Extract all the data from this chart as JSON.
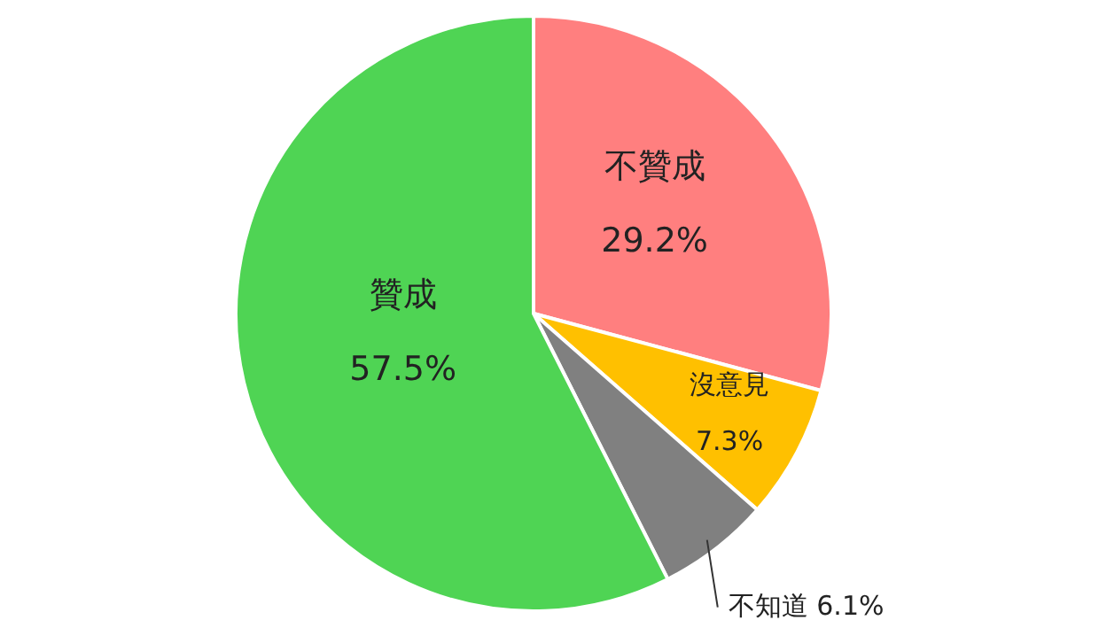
{
  "chart_data": {
    "type": "pie",
    "categories": [
      "不贊成",
      "沒意見",
      "不知道",
      "贊成"
    ],
    "values": [
      29.2,
      7.3,
      6.1,
      57.5
    ],
    "value_labels": [
      "29.2%",
      "7.3%",
      "6.1%",
      "57.5%"
    ],
    "colors": [
      "#ff7f7f",
      "#ffc000",
      "#808080",
      "#4fd454"
    ],
    "legend": false
  }
}
